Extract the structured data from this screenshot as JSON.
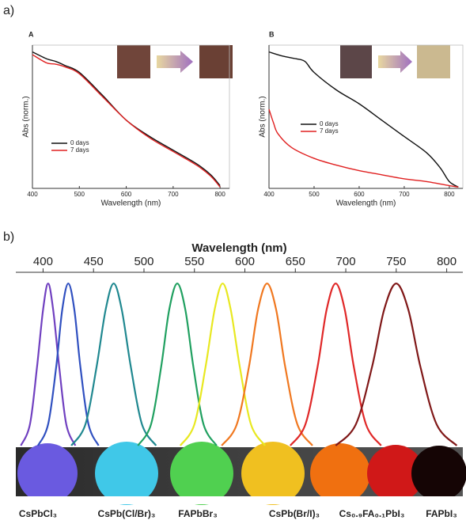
{
  "figure": {
    "panel_a_label": "a)",
    "panel_b_label": "b)"
  },
  "chart_data": [
    {
      "type": "line",
      "panel": "A",
      "xlabel": "Wavelength (nm)",
      "ylabel": "Abs (norm.)",
      "xlim": [
        400,
        820
      ],
      "ylim": [
        0,
        1.05
      ],
      "xticks": [
        400,
        500,
        600,
        700,
        800
      ],
      "series": [
        {
          "name": "0 days",
          "color": "#111111",
          "x": [
            400,
            430,
            450,
            470,
            500,
            550,
            600,
            650,
            700,
            750,
            780,
            800
          ],
          "values": [
            1.0,
            0.95,
            0.93,
            0.9,
            0.85,
            0.68,
            0.5,
            0.38,
            0.28,
            0.18,
            0.1,
            0.02
          ]
        },
        {
          "name": "7 days",
          "color": "#e02020",
          "x": [
            400,
            430,
            450,
            470,
            500,
            550,
            600,
            650,
            700,
            750,
            780,
            800
          ],
          "values": [
            0.98,
            0.92,
            0.91,
            0.89,
            0.84,
            0.67,
            0.5,
            0.37,
            0.27,
            0.17,
            0.09,
            0.01
          ]
        }
      ]
    },
    {
      "type": "line",
      "panel": "B",
      "xlabel": "Wavelength (nm)",
      "ylabel": "Abs (norm.)",
      "xlim": [
        400,
        830
      ],
      "ylim": [
        0,
        1.05
      ],
      "xticks": [
        400,
        500,
        600,
        700,
        800
      ],
      "series": [
        {
          "name": "0 days",
          "color": "#111111",
          "x": [
            400,
            430,
            460,
            480,
            500,
            550,
            600,
            650,
            700,
            750,
            780,
            800,
            820
          ],
          "values": [
            1.0,
            0.97,
            0.95,
            0.93,
            0.85,
            0.72,
            0.62,
            0.5,
            0.38,
            0.26,
            0.15,
            0.05,
            0.01
          ]
        },
        {
          "name": "7 days",
          "color": "#e02020",
          "x": [
            400,
            410,
            420,
            450,
            500,
            550,
            600,
            650,
            700,
            750,
            800,
            820
          ],
          "values": [
            0.58,
            0.48,
            0.4,
            0.3,
            0.22,
            0.17,
            0.13,
            0.1,
            0.07,
            0.05,
            0.02,
            0.01
          ]
        }
      ]
    },
    {
      "type": "spectra",
      "xlabel": "Wavelength (nm)",
      "xlim": [
        373,
        816
      ],
      "ylim": [
        0,
        1.03
      ],
      "xticks": [
        400,
        450,
        500,
        550,
        600,
        650,
        700,
        750,
        800
      ],
      "samples": [
        "CsPbCl₃",
        "CsPb(Cl/Br)₃",
        "FAPbBr₃",
        "CsPb(Br/I)₃",
        "Cs₀.₉FA₀.₁PbI₃",
        "FAPbI₃"
      ],
      "series": [
        {
          "color": "#7040c0",
          "x": [
            378,
            387,
            394,
            400,
            405,
            410,
            416,
            423,
            432
          ],
          "values": [
            0.01,
            0.14,
            0.49,
            0.84,
            1,
            0.84,
            0.49,
            0.14,
            0.01
          ]
        },
        {
          "color": "#3050c0",
          "x": [
            395,
            405,
            413,
            419,
            425,
            431,
            437,
            445,
            455
          ],
          "values": [
            0.01,
            0.14,
            0.49,
            0.84,
            1,
            0.84,
            0.49,
            0.14,
            0.01
          ]
        },
        {
          "color": "#208890",
          "x": [
            428,
            442,
            453,
            462,
            470,
            478,
            487,
            498,
            512
          ],
          "values": [
            0.01,
            0.14,
            0.49,
            0.84,
            1,
            0.84,
            0.49,
            0.14,
            0.01
          ]
        },
        {
          "color": "#20a060",
          "x": [
            494,
            507,
            517,
            525,
            533,
            541,
            549,
            559,
            572
          ],
          "values": [
            0.01,
            0.14,
            0.49,
            0.84,
            1,
            0.84,
            0.49,
            0.14,
            0.01
          ]
        },
        {
          "color": "#e8e820",
          "x": [
            536,
            550,
            561,
            570,
            578,
            586,
            595,
            606,
            620
          ],
          "values": [
            0.01,
            0.14,
            0.49,
            0.84,
            1,
            0.84,
            0.49,
            0.14,
            0.01
          ]
        },
        {
          "color": "#f07820",
          "x": [
            577,
            592,
            604,
            613,
            622,
            631,
            640,
            652,
            667
          ],
          "values": [
            0.01,
            0.14,
            0.49,
            0.84,
            1,
            0.84,
            0.49,
            0.14,
            0.01
          ]
        },
        {
          "color": "#e02828",
          "x": [
            645,
            660,
            672,
            681,
            690,
            699,
            708,
            720,
            735
          ],
          "values": [
            0.01,
            0.14,
            0.49,
            0.84,
            1,
            0.84,
            0.49,
            0.14,
            0.01
          ]
        },
        {
          "color": "#801818",
          "x": [
            690,
            710,
            726,
            738,
            750,
            762,
            774,
            790,
            810
          ],
          "values": [
            0.01,
            0.14,
            0.49,
            0.84,
            1,
            0.84,
            0.49,
            0.14,
            0.01
          ]
        }
      ]
    }
  ]
}
